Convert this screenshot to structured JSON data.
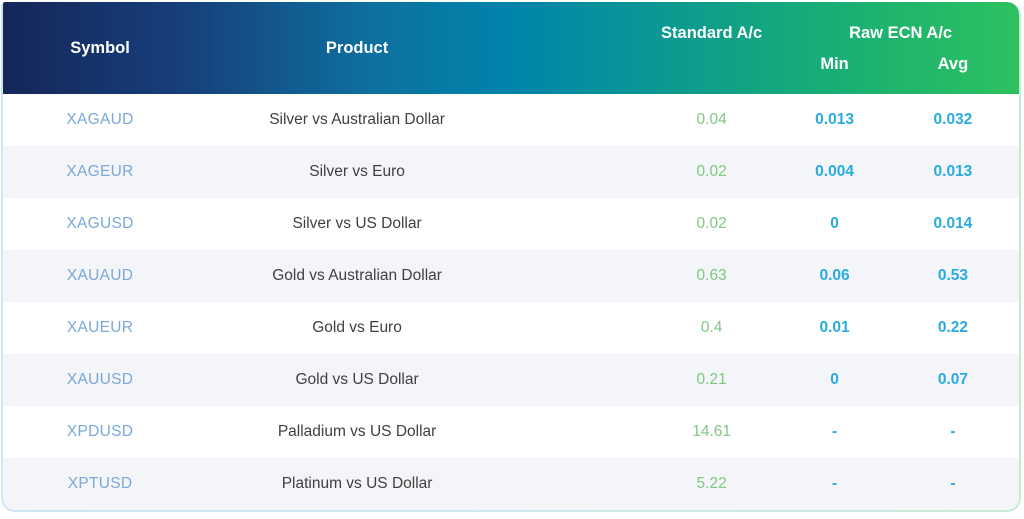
{
  "table": {
    "title": "spread-comparison-table",
    "columns": {
      "symbol": "Symbol",
      "product": "Product",
      "standard": "Standard A/c",
      "raw_ecn": "Raw ECN A/c",
      "min": "Min",
      "avg": "Avg"
    },
    "rows": [
      {
        "symbol": "XAGAUD",
        "product": "Silver vs Australian Dollar",
        "standard": "0.04",
        "min": "0.013",
        "avg": "0.032"
      },
      {
        "symbol": "XAGEUR",
        "product": "Silver vs Euro",
        "standard": "0.02",
        "min": "0.004",
        "avg": "0.013"
      },
      {
        "symbol": "XAGUSD",
        "product": "Silver vs US Dollar",
        "standard": "0.02",
        "min": "0",
        "avg": "0.014"
      },
      {
        "symbol": "XAUAUD",
        "product": "Gold vs Australian Dollar",
        "standard": "0.63",
        "min": "0.06",
        "avg": "0.53"
      },
      {
        "symbol": "XAUEUR",
        "product": "Gold vs Euro",
        "standard": "0.4",
        "min": "0.01",
        "avg": "0.22"
      },
      {
        "symbol": "XAUUSD",
        "product": "Gold vs US Dollar",
        "standard": "0.21",
        "min": "0",
        "avg": "0.07"
      },
      {
        "symbol": "XPDUSD",
        "product": "Palladium vs US Dollar",
        "standard": "14.61",
        "min": "-",
        "avg": "-"
      },
      {
        "symbol": "XPTUSD",
        "product": "Platinum vs US Dollar",
        "standard": "5.22",
        "min": "-",
        "avg": "-"
      }
    ],
    "colors": {
      "header_gradient_start": "#152659",
      "header_gradient_mid": "#0084ab",
      "header_gradient_end": "#2dc15f",
      "alt_row_bg": "#f3f5f8",
      "symbol_text": "#7ba7d8",
      "product_text": "#3f3f3f",
      "standard_value": "#7fc783",
      "ecn_value": "#29abe2",
      "border_blue": "#cfe4f4",
      "border_green": "#c4ebd4"
    }
  }
}
